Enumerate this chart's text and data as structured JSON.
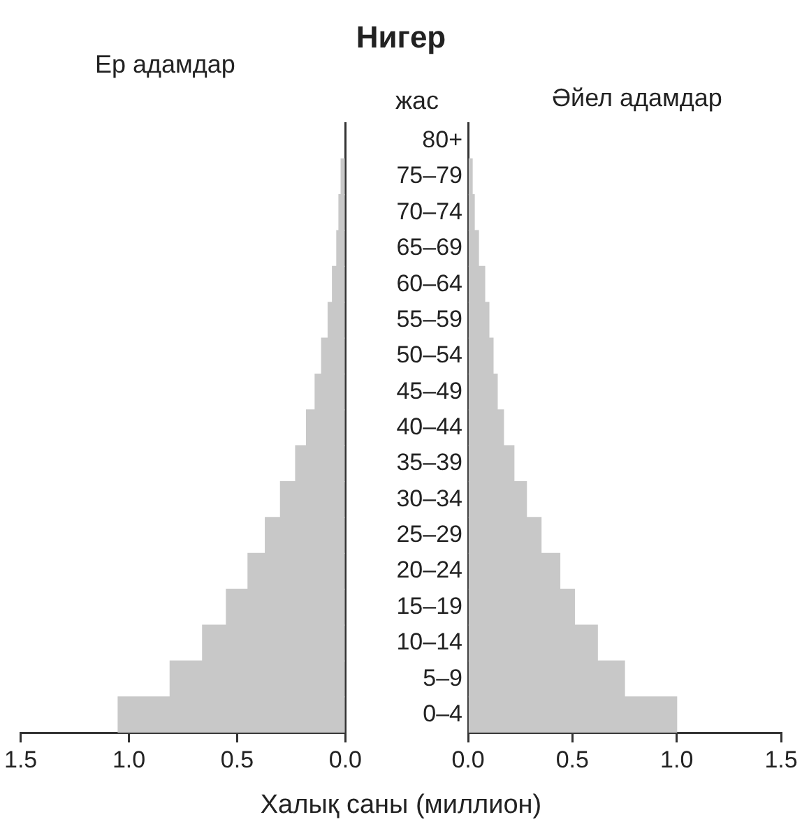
{
  "chart_data": [
    {
      "type": "bar",
      "orientation": "horizontal",
      "title": "Нигер",
      "xlabel": "Халық саны (миллион)",
      "categories": [
        null,
        null,
        null,
        null,
        null,
        null,
        null,
        null,
        null,
        null,
        null,
        null,
        null,
        null,
        null,
        null,
        null
      ],
      "series": [
        {
          "name": "Ер адамдар",
          "color": "#c8c8c8",
          "values": [
            null,
            0.02,
            0.03,
            0.04,
            0.06,
            0.08,
            0.11,
            0.14,
            0.18,
            0.23,
            0.3,
            0.37,
            0.45,
            0.55,
            0.66,
            0.81,
            1.05
          ]
        }
      ],
      "xlim": [
        1.5,
        0
      ],
      "xticks": [
        {
          "value": 1.5,
          "label": "1.5"
        },
        {
          "value": 1,
          "label": "1.0"
        },
        {
          "value": 0.5,
          "label": "0.5"
        },
        {
          "value": 0,
          "label": "0.0"
        }
      ],
      "tick_labels": "x"
    },
    {
      "type": "bar",
      "orientation": "horizontal",
      "ylabel": "жас",
      "categories": [
        "80+",
        "75–79",
        "70–74",
        "65–69",
        "60–64",
        "55–59",
        "50–54",
        "45–49",
        "40–44",
        "35–39",
        "30–34",
        "25–29",
        "20–24",
        "15–19",
        "10–14",
        "5–9",
        "0–4"
      ],
      "series": [
        {
          "name": "Әйел адамдар",
          "color": "#c8c8c8",
          "values": [
            null,
            0.02,
            0.03,
            0.05,
            0.08,
            0.1,
            0.12,
            0.14,
            0.17,
            0.22,
            0.28,
            0.35,
            0.44,
            0.51,
            0.62,
            0.75,
            1.0
          ]
        }
      ],
      "xlim": [
        0,
        1.5
      ],
      "xticks": [
        {
          "value": 0,
          "label": "0.0"
        },
        {
          "value": 0.5,
          "label": "0.5"
        },
        {
          "value": 1,
          "label": "1.0"
        },
        {
          "value": 1.5,
          "label": "1.5"
        }
      ]
    }
  ]
}
